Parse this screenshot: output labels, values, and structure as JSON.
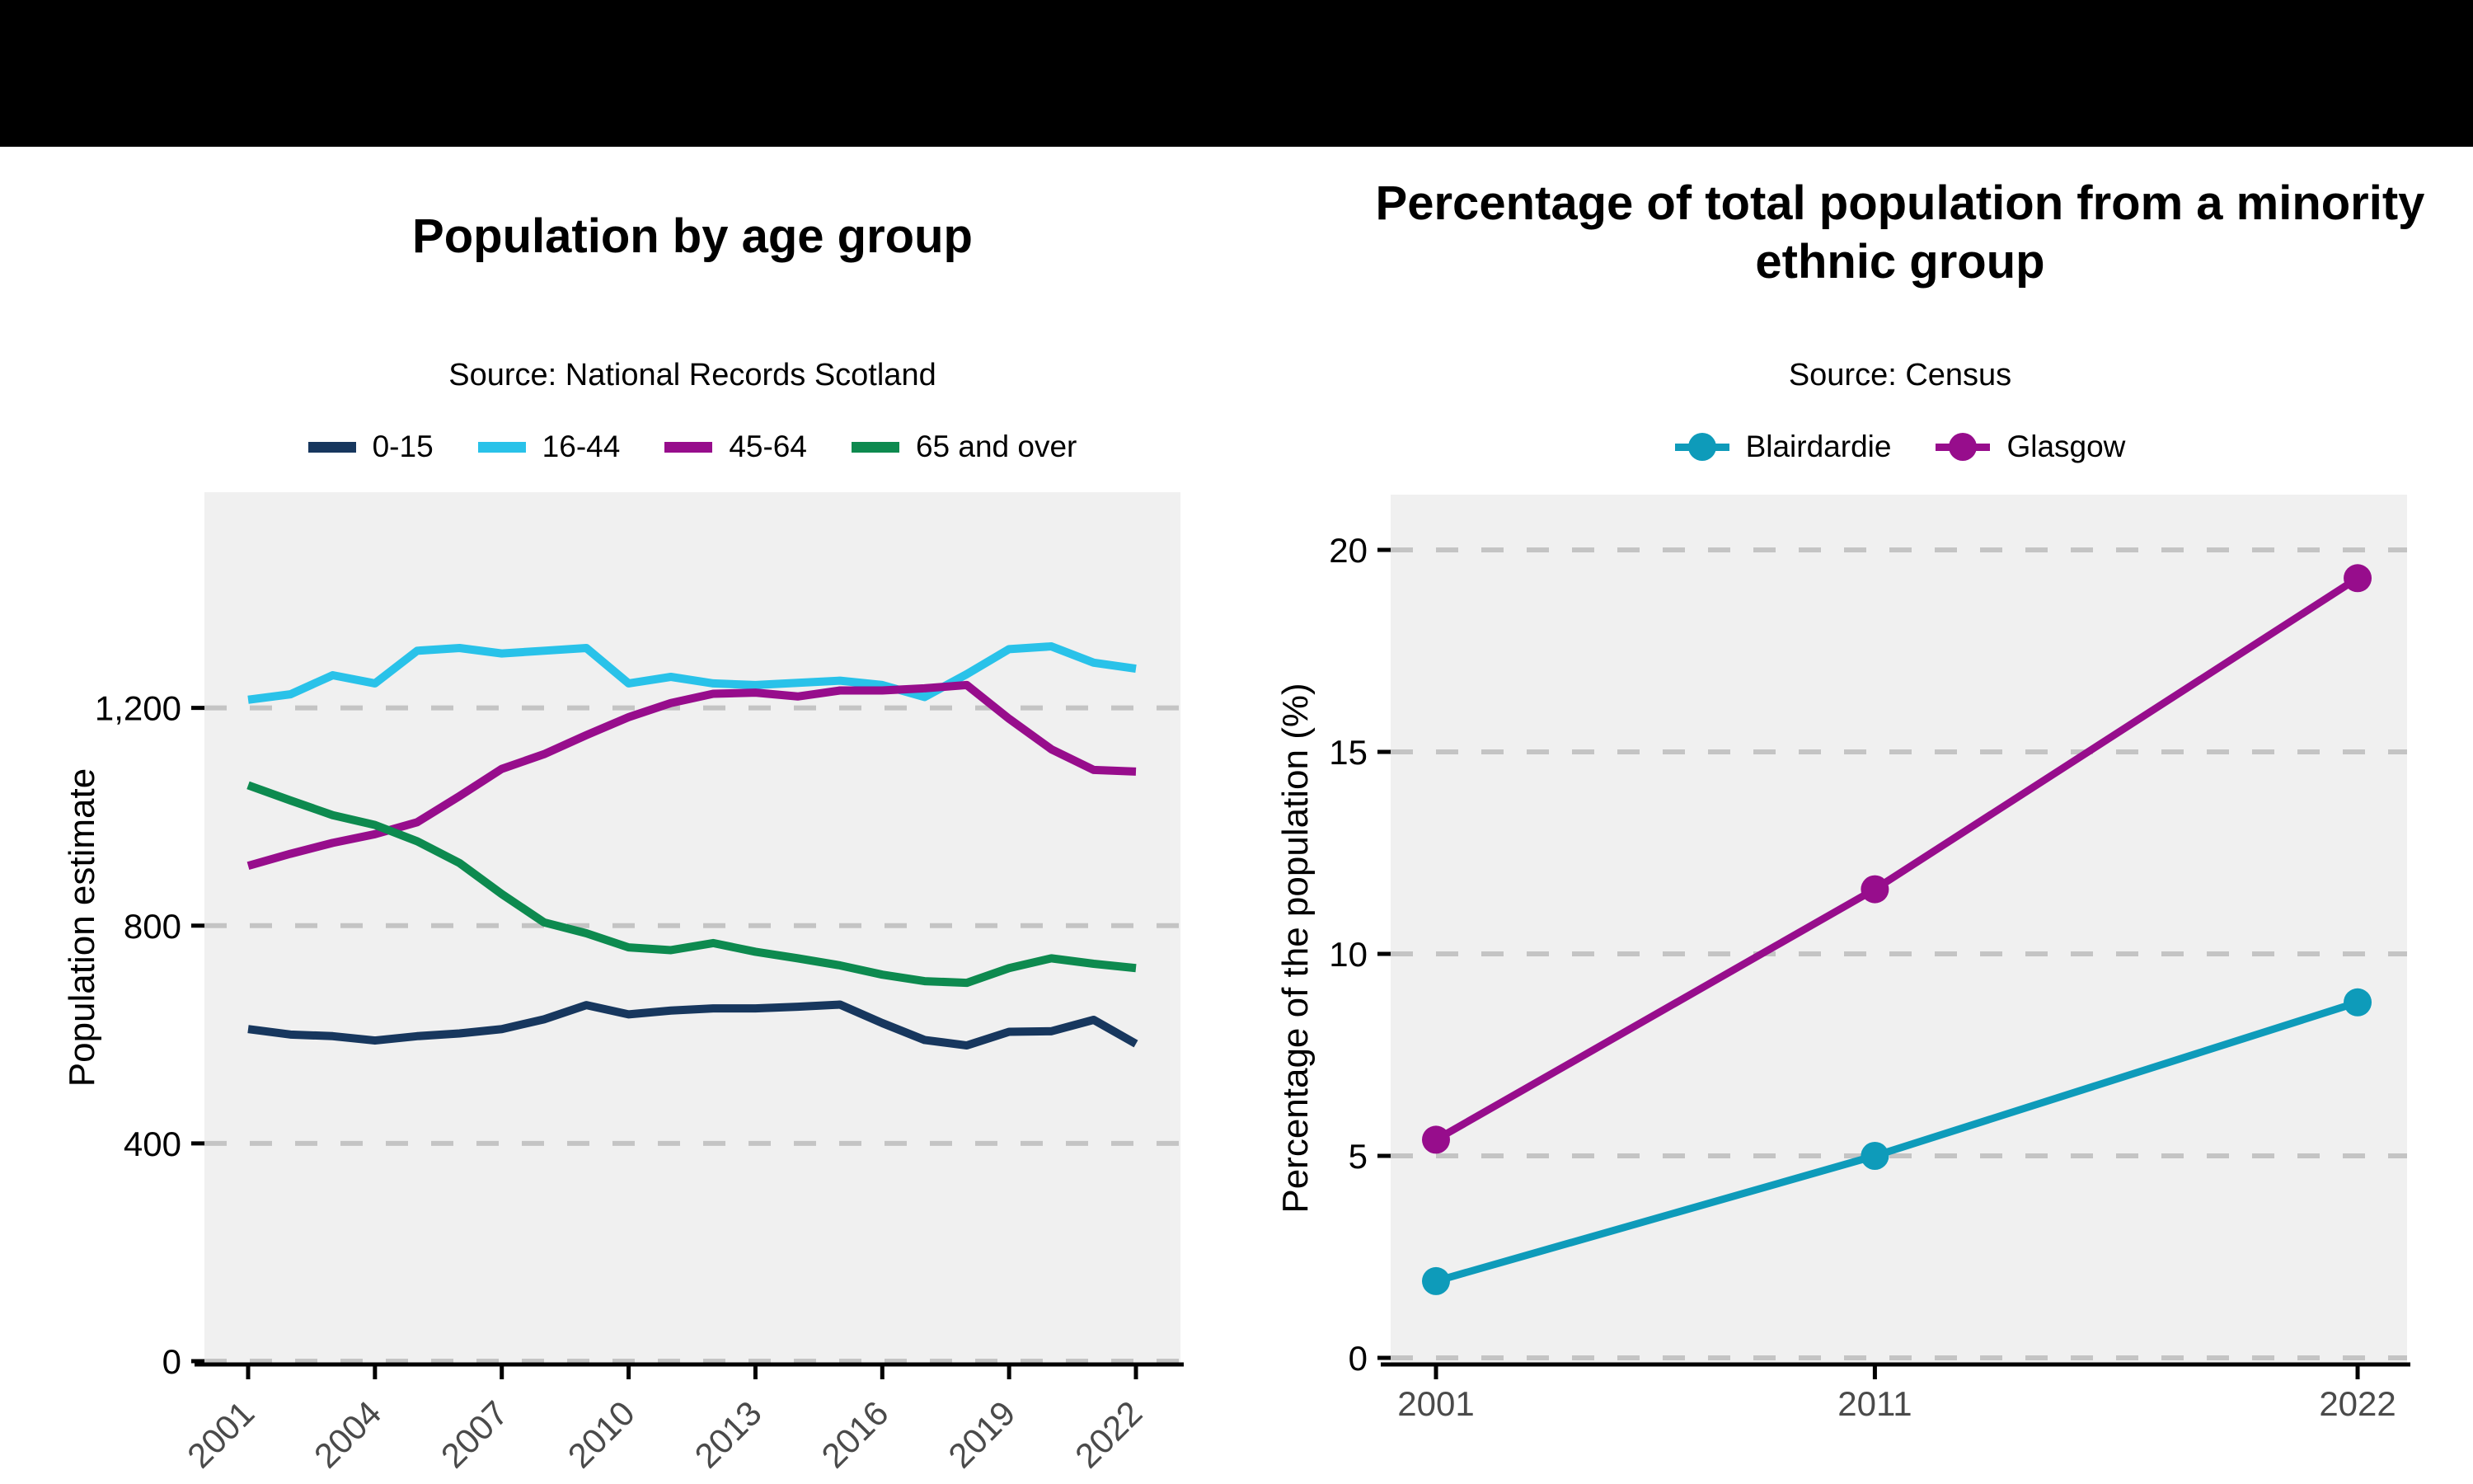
{
  "banner": {
    "color": "#000000"
  },
  "chart_data": [
    {
      "type": "line",
      "title": "Population by age group",
      "subtitle": "Source: National Records Scotland",
      "xlabel": "",
      "ylabel": "Population estimate",
      "x": [
        2001,
        2002,
        2003,
        2004,
        2005,
        2006,
        2007,
        2008,
        2009,
        2010,
        2011,
        2012,
        2013,
        2014,
        2015,
        2016,
        2017,
        2018,
        2019,
        2020,
        2021,
        2022
      ],
      "x_ticks": [
        2001,
        2004,
        2007,
        2010,
        2013,
        2016,
        2019,
        2022
      ],
      "x_tick_labels": [
        "2001",
        "2004",
        "2007",
        "2010",
        "2013",
        "2016",
        "2019",
        "2022"
      ],
      "y_ticks": [
        0,
        400,
        800,
        1200
      ],
      "y_tick_labels": [
        "0",
        "400",
        "800",
        "1,200"
      ],
      "ylim": [
        0,
        1600
      ],
      "grid": "horizontal-dashed",
      "legend_position": "top",
      "markers": false,
      "series": [
        {
          "name": "0-15",
          "color": "#17375E",
          "values": [
            610,
            600,
            597,
            589,
            597,
            602,
            610,
            628,
            654,
            637,
            644,
            648,
            648,
            651,
            655,
            621,
            590,
            580,
            605,
            606,
            627,
            583
          ]
        },
        {
          "name": "16-44",
          "color": "#29C2E9",
          "values": [
            1215,
            1225,
            1260,
            1245,
            1305,
            1310,
            1300,
            1305,
            1310,
            1245,
            1257,
            1245,
            1242,
            1246,
            1250,
            1242,
            1220,
            1262,
            1308,
            1313,
            1283,
            1272
          ]
        },
        {
          "name": "45-64",
          "color": "#970D8C",
          "values": [
            910,
            932,
            952,
            968,
            990,
            1038,
            1088,
            1115,
            1150,
            1183,
            1209,
            1226,
            1228,
            1221,
            1232,
            1232,
            1236,
            1242,
            1180,
            1124,
            1086,
            1083
          ]
        },
        {
          "name": "65 and over",
          "color": "#0D8A4F",
          "values": [
            1058,
            1030,
            1003,
            985,
            955,
            915,
            858,
            806,
            786,
            760,
            755,
            768,
            752,
            740,
            727,
            710,
            698,
            695,
            722,
            740,
            730,
            722
          ]
        }
      ]
    },
    {
      "type": "line",
      "title": "Percentage of total population from a minority ethnic group",
      "subtitle": "Source: Census",
      "xlabel": "",
      "ylabel": "Percentage of the population (%)",
      "x": [
        2001,
        2011,
        2022
      ],
      "x_ticks": [
        2001,
        2011,
        2022
      ],
      "x_tick_labels": [
        "2001",
        "2011",
        "2022"
      ],
      "y_ticks": [
        0,
        5,
        10,
        15,
        20
      ],
      "y_tick_labels": [
        "0",
        "5",
        "10",
        "15",
        "20"
      ],
      "ylim": [
        0,
        21.4
      ],
      "grid": "horizontal-dashed",
      "legend_position": "top",
      "markers": true,
      "series": [
        {
          "name": "Blairdardie",
          "color": "#0E9BBA",
          "values": [
            1.9,
            5.0,
            8.8
          ]
        },
        {
          "name": "Glasgow",
          "color": "#970D8C",
          "values": [
            5.4,
            11.6,
            19.3
          ]
        }
      ]
    }
  ]
}
